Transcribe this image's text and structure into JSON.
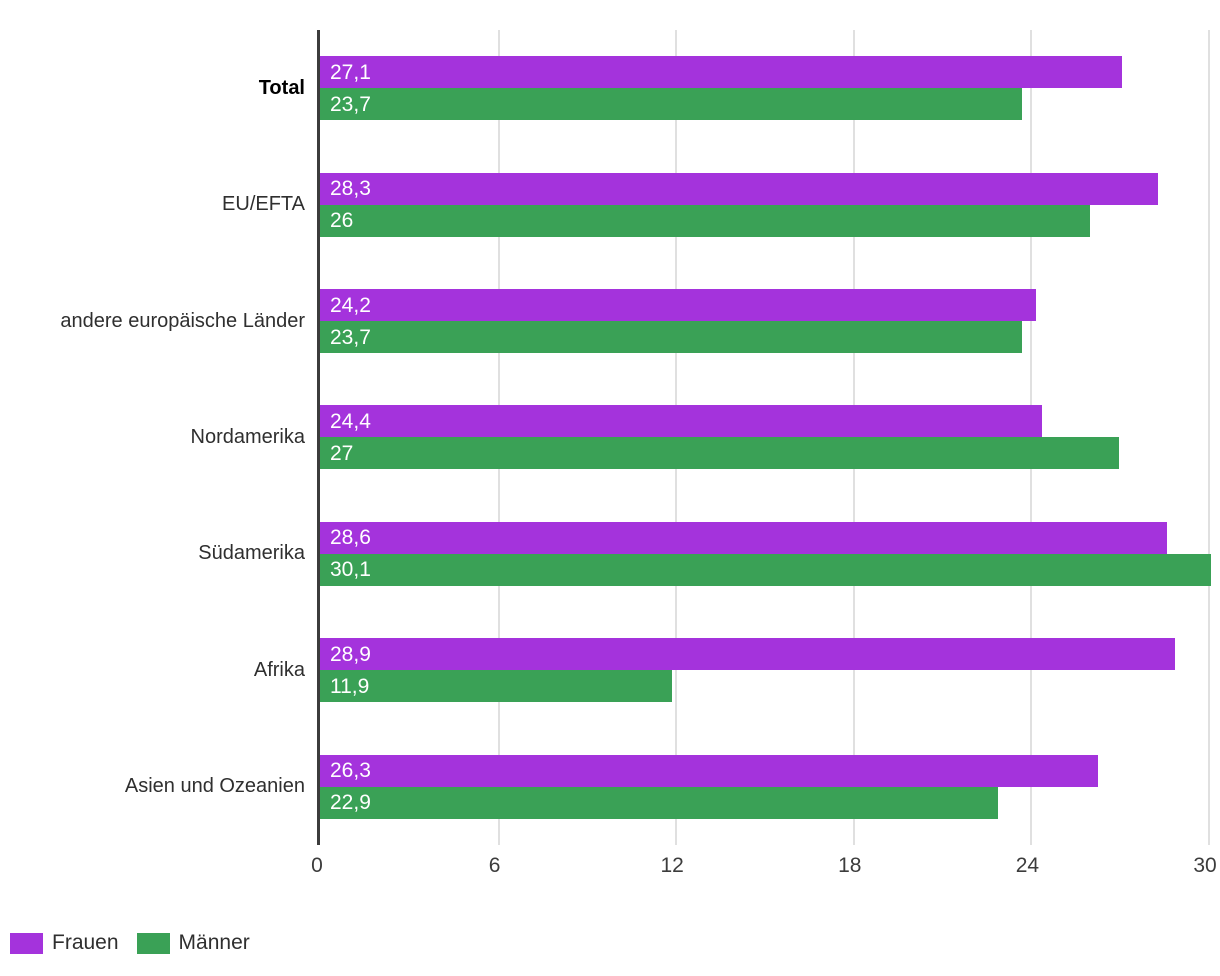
{
  "chart_data": {
    "type": "bar",
    "orientation": "horizontal",
    "title": "",
    "xlabel": "",
    "ylabel": "",
    "categories": [
      "Total",
      "EU/EFTA",
      "andere europäische Länder",
      "Nordamerika",
      "Südamerika",
      "Afrika",
      "Asien und Ozeanien"
    ],
    "bold_categories": [
      "Total"
    ],
    "series": [
      {
        "name": "Frauen",
        "color": "#a433dc",
        "values": [
          27.1,
          28.3,
          24.2,
          24.4,
          28.6,
          28.9,
          26.3
        ],
        "labels": [
          "27,1",
          "28,3",
          "24,2",
          "24,4",
          "28,6",
          "28,9",
          "26,3"
        ]
      },
      {
        "name": "Männer",
        "color": "#3aa156",
        "values": [
          23.7,
          26,
          23.7,
          27,
          30.1,
          11.9,
          22.9
        ],
        "labels": [
          "23,7",
          "26",
          "23,7",
          "27",
          "30,1",
          "11,9",
          "22,9"
        ]
      }
    ],
    "xticks": [
      0,
      6,
      12,
      18,
      24,
      30
    ],
    "xtick_labels": [
      "0",
      "6",
      "12",
      "18",
      "24",
      "30"
    ],
    "xlim": [
      0,
      30.2
    ],
    "grid": true,
    "value_labels": "inside-start",
    "legend_position": "bottom-left"
  },
  "legend": {
    "items": [
      {
        "label": "Frauen",
        "color": "#a433dc"
      },
      {
        "label": "Männer",
        "color": "#3aa156"
      }
    ]
  },
  "colors": {
    "series_frauen": "#a433dc",
    "series_maenner": "#3aa156",
    "gridline": "#e0e0e0",
    "axis": "#3c3c3c",
    "category_text": "#2f2f2f",
    "value_text": "#ffffff",
    "background": "#ffffff"
  }
}
